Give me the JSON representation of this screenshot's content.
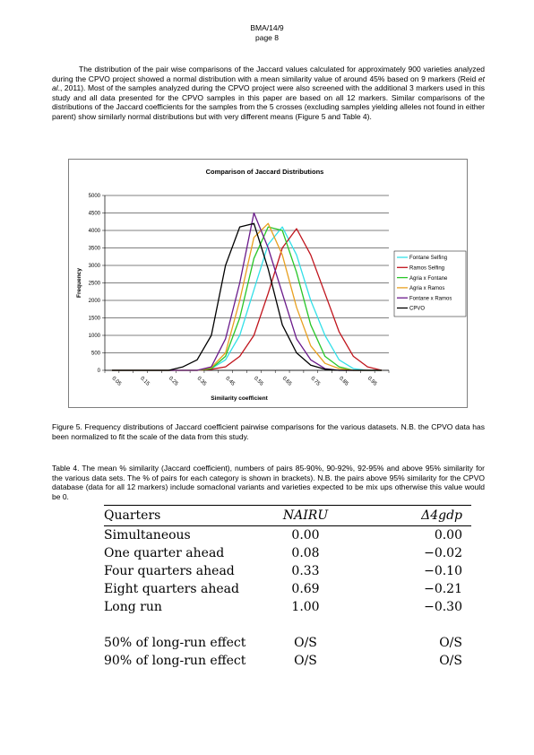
{
  "header": {
    "doc_id": "BMA/14/9",
    "page": "page 8"
  },
  "paragraph": {
    "line1": "The distribution of the pair wise comparisons of the Jaccard values calculated for approximately 900 varieties analyzed during the CPVO project showed a normal distribution with a mean similarity value of around 45% based on 9 markers (Reid ",
    "et_al": "et al",
    "line2": "., 2011). Most of the samples analyzed during the CPVO project were also screened with the additional 3 markers used in this study and all data presented for the CPVO samples in this paper are based on all 12 markers. Similar comparisons of the distributions of the Jaccard coefficients for the samples from the 5 crosses (excluding samples yielding alleles not found in either parent) show similarly normal distributions but with very different means (Figure 5 and Table 4)."
  },
  "chart_data": {
    "type": "line",
    "title": "Comparison of Jaccard Distributions",
    "xlabel": "Similarity coefficient",
    "ylabel": "Frequency",
    "ylim": [
      0,
      5000
    ],
    "yticks": [
      "0",
      "500",
      "1000",
      "1500",
      "2000",
      "2500",
      "3000",
      "3500",
      "4000",
      "4500",
      "5000"
    ],
    "categories": [
      "0.05",
      "0.1",
      "0.15",
      "0.2",
      "0.25",
      "0.3",
      "0.35",
      "0.4",
      "0.45",
      "0.5",
      "0.55",
      "0.6",
      "0.65",
      "0.7",
      "0.75",
      "0.8",
      "0.85",
      "0.9",
      "0.95",
      "1"
    ],
    "xtick_labels": [
      "0.05",
      "0.15",
      "0.25",
      "0.35",
      "0.45",
      "0.55",
      "0.65",
      "0.75",
      "0.85",
      "0.95"
    ],
    "legend_position": "right",
    "grid": "horizontal",
    "series": [
      {
        "name": "Fontane Selfing",
        "color": "#33e0e8",
        "values": [
          0,
          0,
          0,
          0,
          0,
          0,
          0,
          50,
          300,
          1000,
          2300,
          3600,
          4100,
          3300,
          2000,
          1000,
          300,
          50,
          0,
          0
        ]
      },
      {
        "name": "Ramos Selfing",
        "color": "#c0141c",
        "values": [
          0,
          0,
          0,
          0,
          0,
          0,
          0,
          30,
          100,
          400,
          1000,
          2200,
          3500,
          4050,
          3300,
          2200,
          1100,
          400,
          100,
          0
        ]
      },
      {
        "name": "Agria x Fontane",
        "color": "#28c628",
        "values": [
          0,
          0,
          0,
          0,
          0,
          0,
          0,
          50,
          400,
          1500,
          3200,
          4100,
          4000,
          2800,
          1300,
          400,
          100,
          0,
          0,
          0
        ]
      },
      {
        "name": "Agria x Ramos",
        "color": "#e8a020",
        "values": [
          0,
          0,
          0,
          0,
          0,
          0,
          0,
          80,
          500,
          2000,
          3800,
          4200,
          3300,
          1800,
          700,
          200,
          50,
          0,
          0,
          0
        ]
      },
      {
        "name": "Fontane x Ramos",
        "color": "#6a1a8a",
        "values": [
          0,
          0,
          0,
          0,
          0,
          0,
          0,
          100,
          900,
          2500,
          4500,
          3500,
          2200,
          900,
          300,
          50,
          0,
          0,
          0,
          0
        ]
      },
      {
        "name": "CPVO",
        "color": "#000000",
        "values": [
          0,
          0,
          0,
          0,
          0,
          100,
          300,
          1000,
          3000,
          4100,
          4200,
          2900,
          1300,
          500,
          150,
          30,
          0,
          0,
          0,
          0
        ]
      }
    ]
  },
  "figure_caption": "Figure 5. Frequency distributions of Jaccard coefficient pairwise comparisons for the various datasets. N.B. the CPVO data has been normalized to fit the scale of the data from this study.",
  "table_caption": "Table 4. The mean % similarity (Jaccard coefficient), numbers of pairs 85-90%, 90-92%, 92-95% and above 95% similarity for the various data sets. The % of pairs for each category is shown in brackets). N.B. the pairs above 95% similarity for the CPVO database (data for all 12 markers) include somaclonal variants and varieties expected to be mix ups otherwise this value would be 0.",
  "table": {
    "headers": [
      "Quarters",
      "NAIRU",
      "Δ4gdp"
    ],
    "rows": [
      [
        "Simultaneous",
        "0.00",
        "0.00"
      ],
      [
        "One quarter ahead",
        "0.08",
        "−0.02"
      ],
      [
        "Four quarters ahead",
        "0.33",
        "−0.10"
      ],
      [
        "Eight quarters ahead",
        "0.69",
        "−0.21"
      ],
      [
        "Long run",
        "1.00",
        "−0.30"
      ]
    ],
    "effect_rows": [
      [
        "50% of long-run effect",
        "O/S",
        "O/S"
      ],
      [
        "90% of long-run effect",
        "O/S",
        "O/S"
      ]
    ]
  }
}
